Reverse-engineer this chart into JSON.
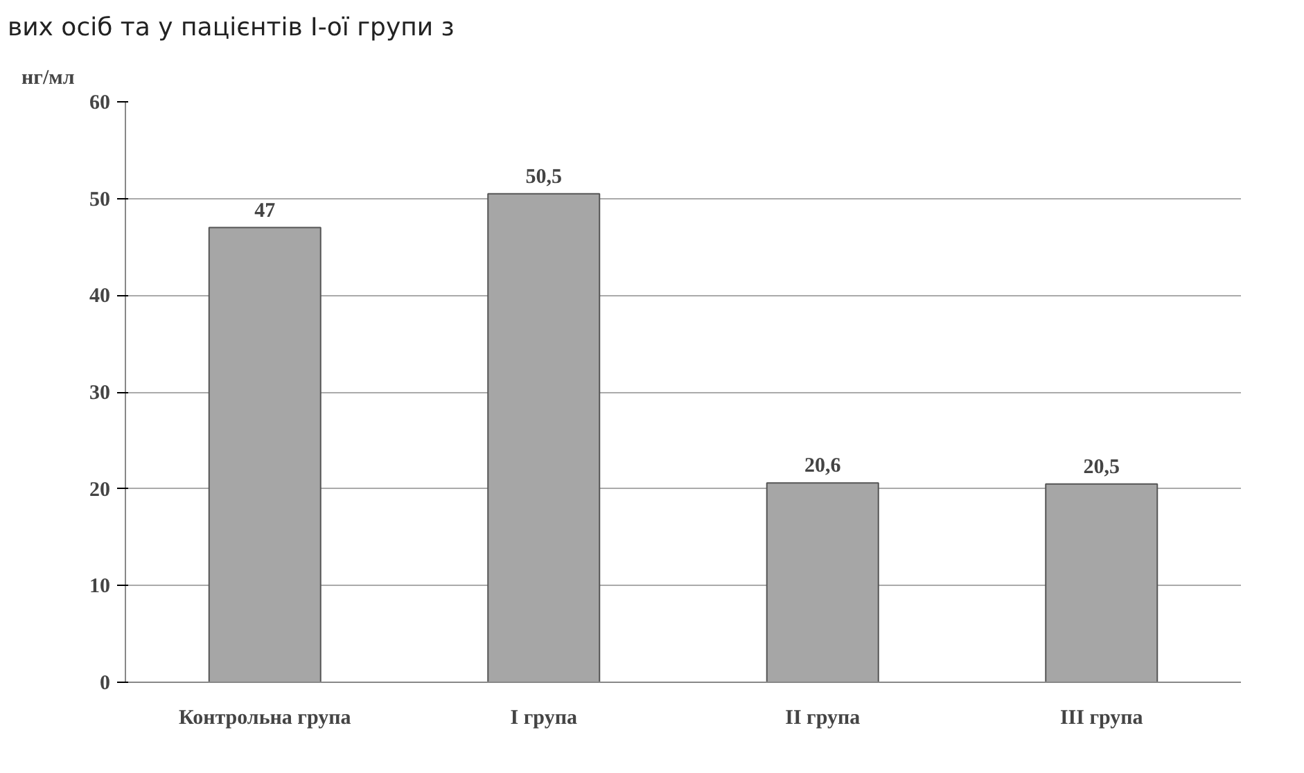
{
  "chart_data": {
    "type": "bar",
    "annotations": [
      "вих осіб та у пацієнтів І-ої групи з"
    ],
    "ylabel": "нг/мл",
    "categories": [
      "Контрольна група",
      "І група",
      "ІІ група",
      "ІІІ група"
    ],
    "values": [
      47,
      50.5,
      20.6,
      20.5
    ],
    "value_labels": [
      "47",
      "50,5",
      "20,6",
      "20,5"
    ],
    "color": "#a6a6a6",
    "ylim": [
      0,
      60
    ],
    "yticks": [
      0,
      10,
      20,
      30,
      40,
      50,
      60
    ],
    "grid": "y"
  }
}
